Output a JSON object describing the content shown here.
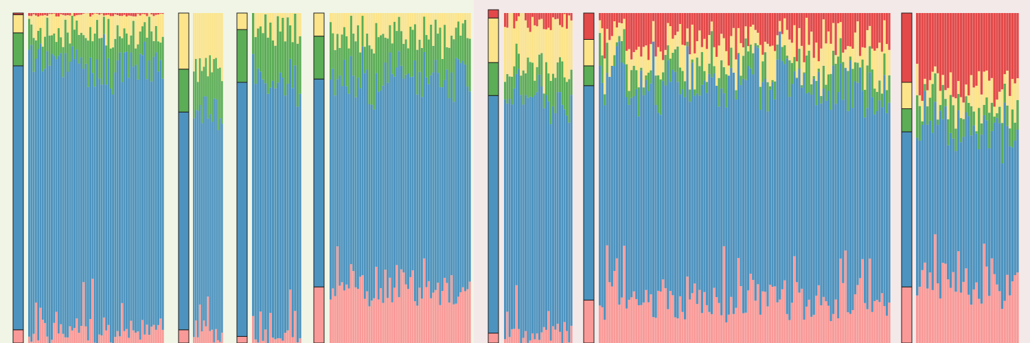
{
  "colors": {
    "background_left": "#f1f5e6",
    "background_right": "#f4e9e9",
    "pink": "#f99a98",
    "blue": "#4d93bf",
    "green": "#5bad56",
    "yellow": "#fbe48a",
    "red": "#e34949",
    "outline": "#1a1a1a"
  },
  "chart_data": {
    "type": "bar",
    "stacked": true,
    "normalized": true,
    "title": "",
    "xlabel": "",
    "ylabel": "",
    "ylim": [
      0,
      1
    ],
    "axes_visible": false,
    "grid": false,
    "legend": "none",
    "categories_stack_order": [
      "pink",
      "blue",
      "green",
      "yellow",
      "red"
    ],
    "groups": [
      {
        "name": "",
        "panel": "left",
        "bars": 60,
        "mean": [
          0.04,
          0.8,
          0.1,
          0.055,
          0.005
        ],
        "spread": 0.05,
        "seed": 11
      },
      {
        "name": "",
        "panel": "left",
        "bars": 15,
        "mean": [
          0.04,
          0.66,
          0.13,
          0.17,
          0.0
        ],
        "spread": 0.05,
        "seed": 23
      },
      {
        "name": "",
        "panel": "left",
        "bars": 20,
        "mean": [
          0.02,
          0.77,
          0.16,
          0.05,
          0.0
        ],
        "spread": 0.05,
        "seed": 37
      },
      {
        "name": "",
        "panel": "left",
        "bars": 62,
        "mean": [
          0.17,
          0.63,
          0.13,
          0.07,
          0.0
        ],
        "spread": 0.06,
        "seed": 41
      },
      {
        "name": "",
        "panel": "right",
        "bars": 30,
        "mean": [
          0.03,
          0.72,
          0.1,
          0.135,
          0.025
        ],
        "spread": 0.06,
        "seed": 53
      },
      {
        "name": "",
        "panel": "right",
        "bars": 120,
        "mean": [
          0.13,
          0.65,
          0.06,
          0.08,
          0.08
        ],
        "spread": 0.06,
        "seed": 67
      },
      {
        "name": "",
        "panel": "right",
        "bars": 40,
        "mean": [
          0.17,
          0.47,
          0.07,
          0.08,
          0.21
        ],
        "spread": 0.06,
        "seed": 79
      }
    ]
  }
}
